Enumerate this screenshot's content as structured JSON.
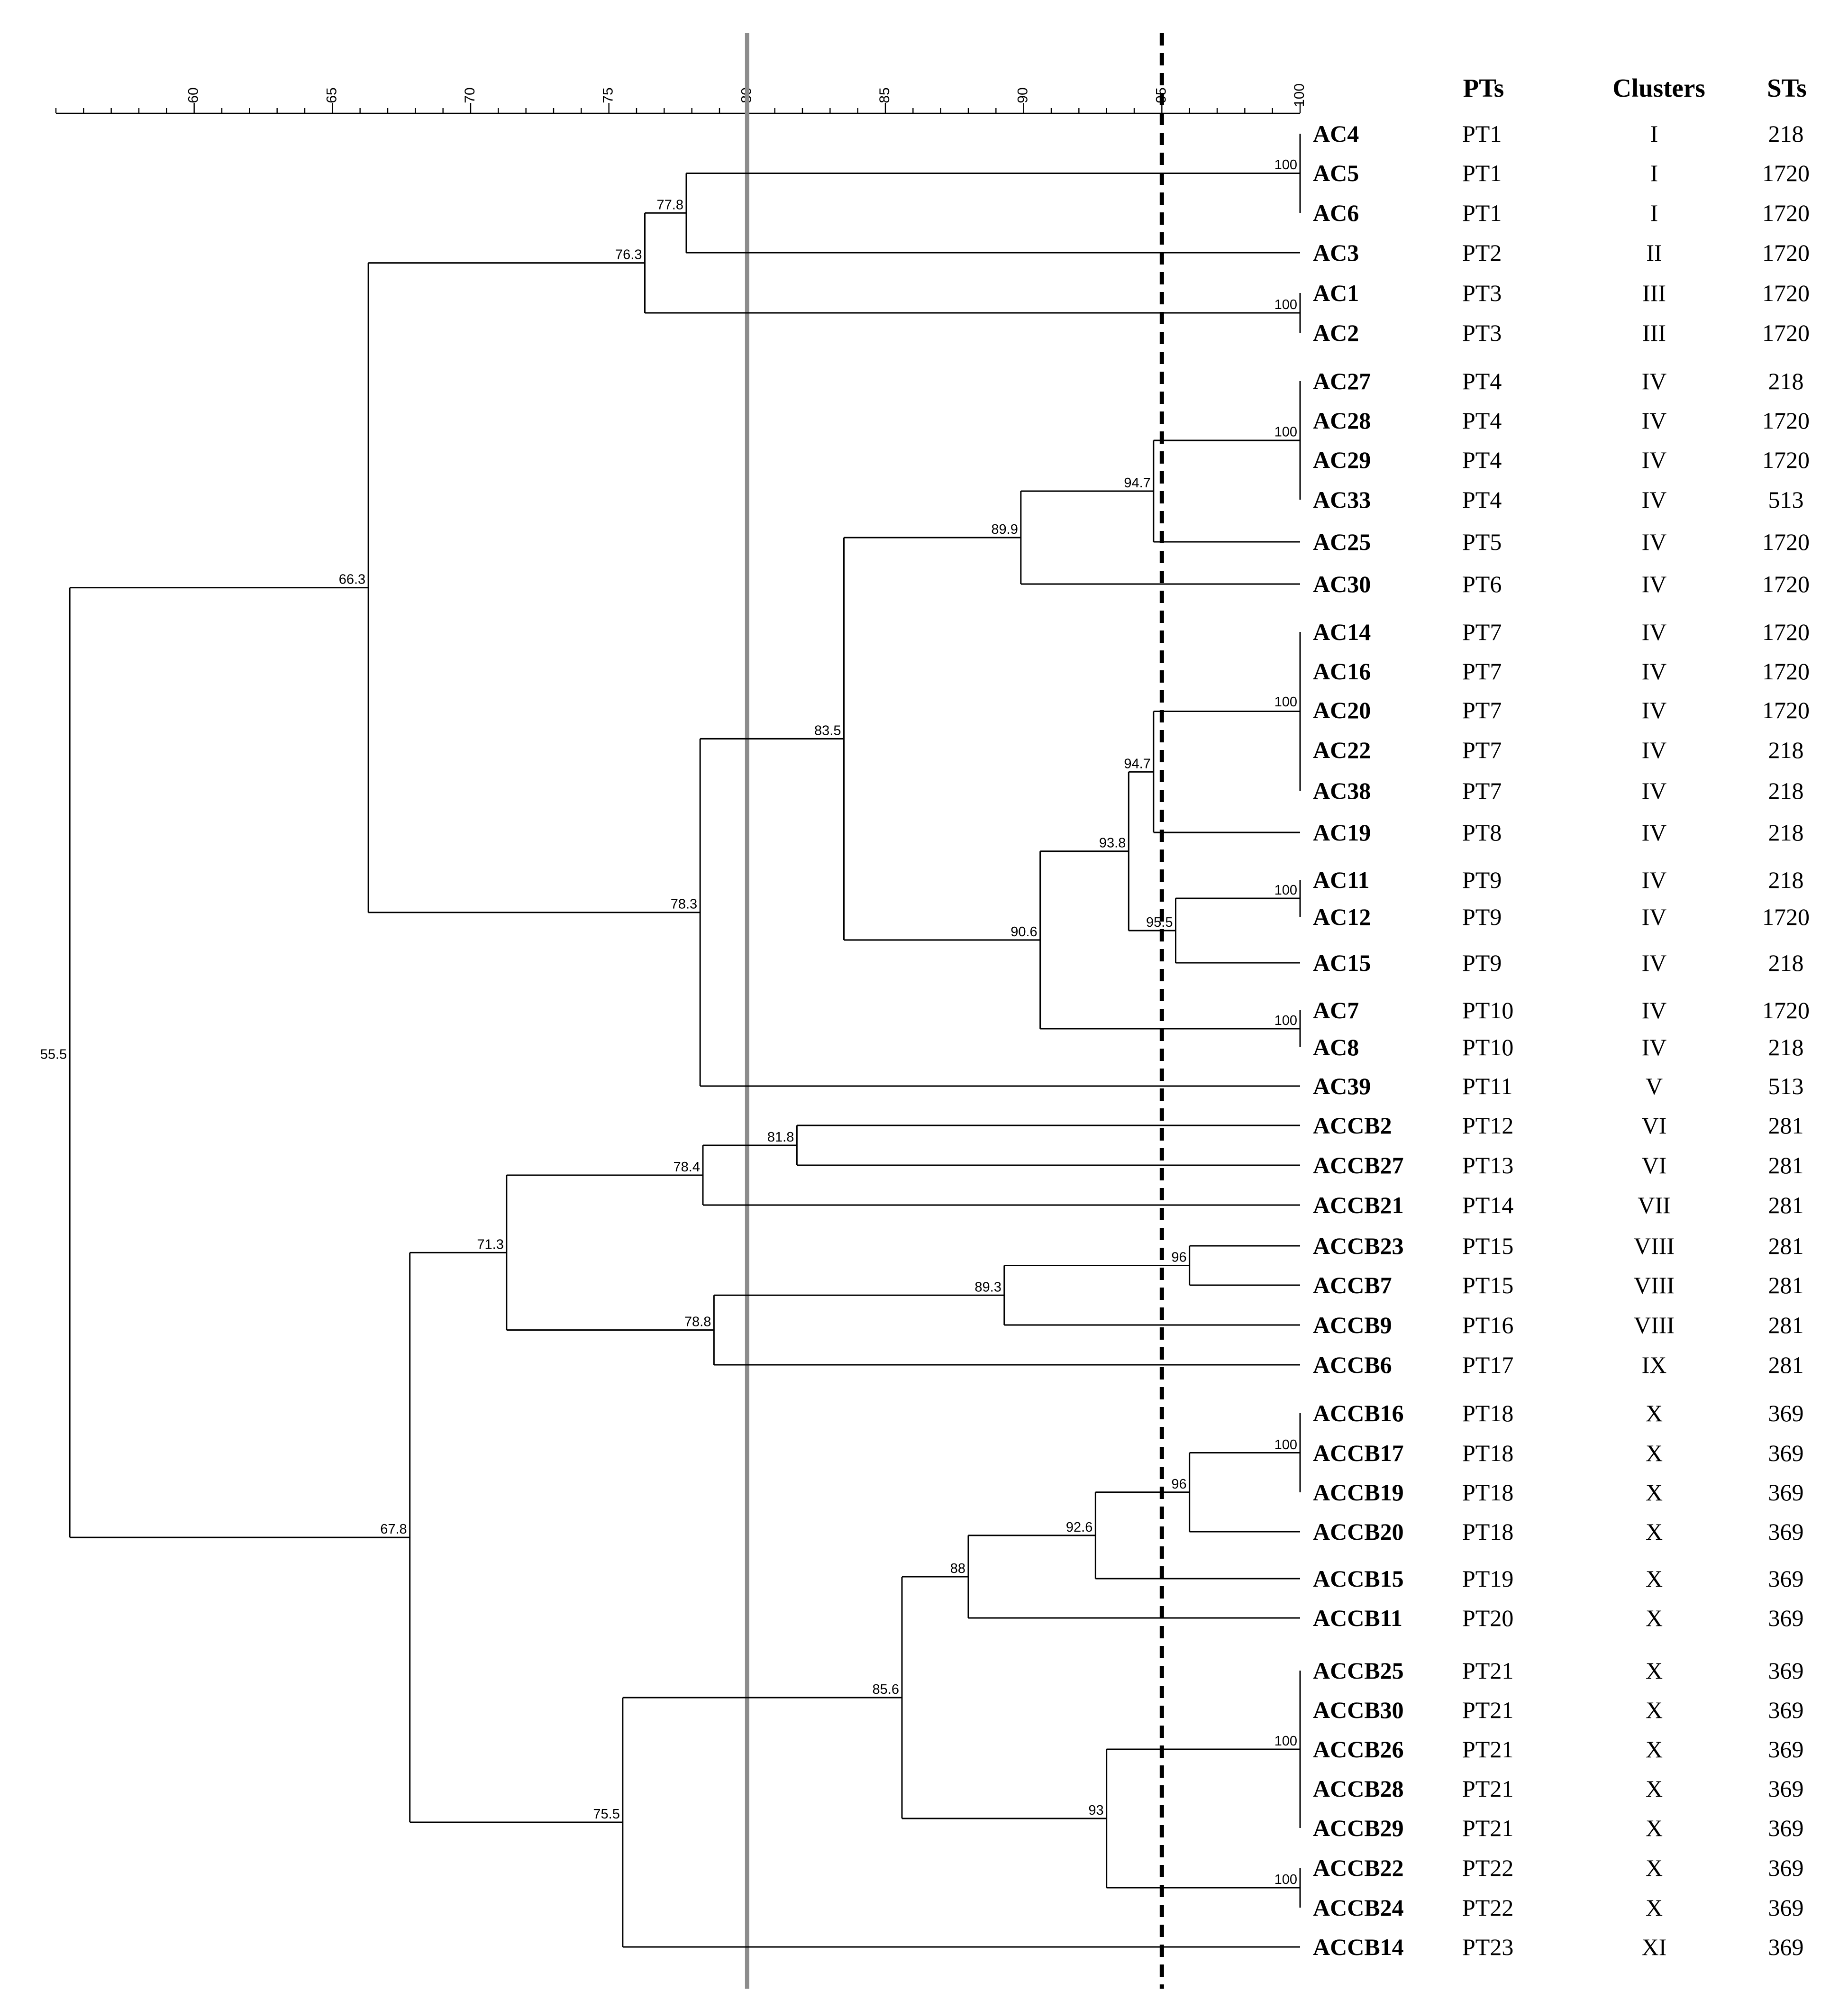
{
  "axis": {
    "min": 55,
    "max": 100,
    "major_ticks": [
      60,
      65,
      70,
      75,
      80,
      85,
      90,
      95,
      100
    ],
    "minor_step": 1
  },
  "thresholds": [
    {
      "value": 80,
      "style": "solid-gray"
    },
    {
      "value": 95,
      "style": "dashed-black"
    }
  ],
  "headers": {
    "pt": "PTs",
    "cluster": "Clusters",
    "st": "STs"
  },
  "rows": [
    {
      "isolate": "AC4",
      "pt": "PT1",
      "cluster": "I",
      "st": "218"
    },
    {
      "isolate": "AC5",
      "pt": "PT1",
      "cluster": "I",
      "st": "1720"
    },
    {
      "isolate": "AC6",
      "pt": "PT1",
      "cluster": "I",
      "st": "1720"
    },
    {
      "isolate": "AC3",
      "pt": "PT2",
      "cluster": "II",
      "st": "1720"
    },
    {
      "isolate": "AC1",
      "pt": "PT3",
      "cluster": "III",
      "st": "1720"
    },
    {
      "isolate": "AC2",
      "pt": "PT3",
      "cluster": "III",
      "st": "1720"
    },
    {
      "isolate": "AC27",
      "pt": "PT4",
      "cluster": "IV",
      "st": "218"
    },
    {
      "isolate": "AC28",
      "pt": "PT4",
      "cluster": "IV",
      "st": "1720"
    },
    {
      "isolate": "AC29",
      "pt": "PT4",
      "cluster": "IV",
      "st": "1720"
    },
    {
      "isolate": "AC33",
      "pt": "PT4",
      "cluster": "IV",
      "st": "513"
    },
    {
      "isolate": "AC25",
      "pt": "PT5",
      "cluster": "IV",
      "st": "1720"
    },
    {
      "isolate": "AC30",
      "pt": "PT6",
      "cluster": "IV",
      "st": "1720"
    },
    {
      "isolate": "AC14",
      "pt": "PT7",
      "cluster": "IV",
      "st": "1720"
    },
    {
      "isolate": "AC16",
      "pt": "PT7",
      "cluster": "IV",
      "st": "1720"
    },
    {
      "isolate": "AC20",
      "pt": "PT7",
      "cluster": "IV",
      "st": "1720"
    },
    {
      "isolate": "AC22",
      "pt": "PT7",
      "cluster": "IV",
      "st": "218"
    },
    {
      "isolate": "AC38",
      "pt": "PT7",
      "cluster": "IV",
      "st": "218"
    },
    {
      "isolate": "AC19",
      "pt": "PT8",
      "cluster": "IV",
      "st": "218"
    },
    {
      "isolate": "AC11",
      "pt": "PT9",
      "cluster": "IV",
      "st": "218"
    },
    {
      "isolate": "AC12",
      "pt": "PT9",
      "cluster": "IV",
      "st": "1720"
    },
    {
      "isolate": "AC15",
      "pt": "PT9",
      "cluster": "IV",
      "st": "218"
    },
    {
      "isolate": "AC7",
      "pt": "PT10",
      "cluster": "IV",
      "st": "1720"
    },
    {
      "isolate": "AC8",
      "pt": "PT10",
      "cluster": "IV",
      "st": "218"
    },
    {
      "isolate": "AC39",
      "pt": "PT11",
      "cluster": "V",
      "st": "513"
    },
    {
      "isolate": "ACCB2",
      "pt": "PT12",
      "cluster": "VI",
      "st": "281"
    },
    {
      "isolate": "ACCB27",
      "pt": "PT13",
      "cluster": "VI",
      "st": "281"
    },
    {
      "isolate": "ACCB21",
      "pt": "PT14",
      "cluster": "VII",
      "st": "281"
    },
    {
      "isolate": "ACCB23",
      "pt": "PT15",
      "cluster": "VIII",
      "st": "281"
    },
    {
      "isolate": "ACCB7",
      "pt": "PT15",
      "cluster": "VIII",
      "st": "281"
    },
    {
      "isolate": "ACCB9",
      "pt": "PT16",
      "cluster": "VIII",
      "st": "281"
    },
    {
      "isolate": "ACCB6",
      "pt": "PT17",
      "cluster": "IX",
      "st": "281"
    },
    {
      "isolate": "ACCB16",
      "pt": "PT18",
      "cluster": "X",
      "st": "369"
    },
    {
      "isolate": "ACCB17",
      "pt": "PT18",
      "cluster": "X",
      "st": "369"
    },
    {
      "isolate": "ACCB19",
      "pt": "PT18",
      "cluster": "X",
      "st": "369"
    },
    {
      "isolate": "ACCB20",
      "pt": "PT18",
      "cluster": "X",
      "st": "369"
    },
    {
      "isolate": "ACCB15",
      "pt": "PT19",
      "cluster": "X",
      "st": "369"
    },
    {
      "isolate": "ACCB11",
      "pt": "PT20",
      "cluster": "X",
      "st": "369"
    },
    {
      "isolate": "ACCB25",
      "pt": "PT21",
      "cluster": "X",
      "st": "369"
    },
    {
      "isolate": "ACCB30",
      "pt": "PT21",
      "cluster": "X",
      "st": "369"
    },
    {
      "isolate": "ACCB26",
      "pt": "PT21",
      "cluster": "X",
      "st": "369"
    },
    {
      "isolate": "ACCB28",
      "pt": "PT21",
      "cluster": "X",
      "st": "369"
    },
    {
      "isolate": "ACCB29",
      "pt": "PT21",
      "cluster": "X",
      "st": "369"
    },
    {
      "isolate": "ACCB22",
      "pt": "PT22",
      "cluster": "X",
      "st": "369"
    },
    {
      "isolate": "ACCB24",
      "pt": "PT22",
      "cluster": "X",
      "st": "369"
    },
    {
      "isolate": "ACCB14",
      "pt": "PT23",
      "cluster": "XI",
      "st": "369"
    }
  ],
  "tree": {
    "id": "n555",
    "sim": 55.5,
    "label": "55.5",
    "children": [
      {
        "id": "n663",
        "sim": 66.3,
        "label": "66.3",
        "children": [
          {
            "id": "n763",
            "sim": 76.3,
            "label": "76.3",
            "children": [
              {
                "id": "n778",
                "sim": 77.8,
                "label": "77.8",
                "children": [
                  {
                    "id": "n100a",
                    "sim": 100,
                    "label": "100",
                    "children": [
                      {
                        "leaf": 0
                      },
                      {
                        "leaf": 1
                      },
                      {
                        "leaf": 2
                      }
                    ]
                  },
                  {
                    "leaf": 3
                  }
                ]
              },
              {
                "id": "n100b",
                "sim": 100,
                "label": "100",
                "children": [
                  {
                    "leaf": 4
                  },
                  {
                    "leaf": 5
                  }
                ]
              }
            ]
          },
          {
            "id": "n783",
            "sim": 78.3,
            "label": "78.3",
            "children": [
              {
                "id": "n835",
                "sim": 83.5,
                "label": "83.5",
                "children": [
                  {
                    "id": "n899",
                    "sim": 89.9,
                    "label": "89.9",
                    "children": [
                      {
                        "id": "n947a",
                        "sim": 94.7,
                        "label": "94.7",
                        "children": [
                          {
                            "id": "n100c",
                            "sim": 100,
                            "label": "100",
                            "children": [
                              {
                                "leaf": 6
                              },
                              {
                                "leaf": 7
                              },
                              {
                                "leaf": 8
                              },
                              {
                                "leaf": 9
                              }
                            ]
                          },
                          {
                            "leaf": 10
                          }
                        ]
                      },
                      {
                        "leaf": 11
                      }
                    ]
                  },
                  {
                    "id": "n906",
                    "sim": 90.6,
                    "label": "90.6",
                    "children": [
                      {
                        "id": "n938",
                        "sim": 93.8,
                        "label": "93.8",
                        "children": [
                          {
                            "id": "n947b",
                            "sim": 94.7,
                            "label": "94.7",
                            "children": [
                              {
                                "id": "n100d",
                                "sim": 100,
                                "label": "100",
                                "children": [
                                  {
                                    "leaf": 12
                                  },
                                  {
                                    "leaf": 13
                                  },
                                  {
                                    "leaf": 14
                                  },
                                  {
                                    "leaf": 15
                                  },
                                  {
                                    "leaf": 16
                                  }
                                ]
                              },
                              {
                                "leaf": 17
                              }
                            ]
                          },
                          {
                            "id": "n955",
                            "sim": 95.5,
                            "label": "95.5",
                            "children": [
                              {
                                "id": "n100e",
                                "sim": 100,
                                "label": "100",
                                "children": [
                                  {
                                    "leaf": 18
                                  },
                                  {
                                    "leaf": 19
                                  }
                                ]
                              },
                              {
                                "leaf": 20
                              }
                            ]
                          }
                        ]
                      },
                      {
                        "id": "n100f",
                        "sim": 100,
                        "label": "100",
                        "children": [
                          {
                            "leaf": 21
                          },
                          {
                            "leaf": 22
                          }
                        ]
                      }
                    ]
                  }
                ]
              },
              {
                "leaf": 23
              }
            ]
          }
        ]
      },
      {
        "id": "n678",
        "sim": 67.8,
        "label": "67.8",
        "children": [
          {
            "id": "n713",
            "sim": 71.3,
            "label": "71.3",
            "children": [
              {
                "id": "n784",
                "sim": 78.4,
                "label": "78.4",
                "children": [
                  {
                    "id": "n818",
                    "sim": 81.8,
                    "label": "81.8",
                    "children": [
                      {
                        "leaf": 24
                      },
                      {
                        "leaf": 25
                      }
                    ]
                  },
                  {
                    "leaf": 26
                  }
                ]
              },
              {
                "id": "n788",
                "sim": 78.8,
                "label": "78.8",
                "children": [
                  {
                    "id": "n893",
                    "sim": 89.3,
                    "label": "89.3",
                    "children": [
                      {
                        "id": "n96a",
                        "sim": 96,
                        "label": "96",
                        "children": [
                          {
                            "leaf": 27
                          },
                          {
                            "leaf": 28
                          }
                        ]
                      },
                      {
                        "leaf": 29
                      }
                    ]
                  },
                  {
                    "leaf": 30
                  }
                ]
              }
            ]
          },
          {
            "id": "n755",
            "sim": 75.5,
            "label": "75.5",
            "children": [
              {
                "id": "n856",
                "sim": 85.6,
                "label": "85.6",
                "children": [
                  {
                    "id": "n88",
                    "sim": 88,
                    "label": "88",
                    "children": [
                      {
                        "id": "n926",
                        "sim": 92.6,
                        "label": "92.6",
                        "children": [
                          {
                            "id": "n96b",
                            "sim": 96,
                            "label": "96",
                            "children": [
                              {
                                "id": "n100g",
                                "sim": 100,
                                "label": "100",
                                "children": [
                                  {
                                    "leaf": 31
                                  },
                                  {
                                    "leaf": 32
                                  },
                                  {
                                    "leaf": 33
                                  }
                                ]
                              },
                              {
                                "leaf": 34
                              }
                            ]
                          },
                          {
                            "leaf": 35
                          }
                        ]
                      },
                      {
                        "leaf": 36
                      }
                    ]
                  },
                  {
                    "id": "n93",
                    "sim": 93,
                    "label": "93",
                    "children": [
                      {
                        "id": "n100h",
                        "sim": 100,
                        "label": "100",
                        "children": [
                          {
                            "leaf": 37
                          },
                          {
                            "leaf": 38
                          },
                          {
                            "leaf": 39
                          },
                          {
                            "leaf": 40
                          },
                          {
                            "leaf": 41
                          }
                        ]
                      },
                      {
                        "id": "n100i",
                        "sim": 100,
                        "label": "100",
                        "children": [
                          {
                            "leaf": 42
                          },
                          {
                            "leaf": 43
                          }
                        ]
                      }
                    ]
                  }
                ]
              },
              {
                "leaf": 44
              }
            ]
          }
        ]
      }
    ]
  }
}
